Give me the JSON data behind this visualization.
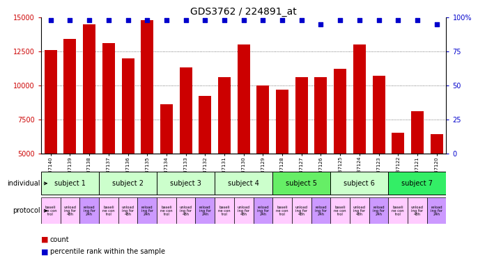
{
  "title": "GDS3762 / 224891_at",
  "samples": [
    "GSM537140",
    "GSM537139",
    "GSM537138",
    "GSM537137",
    "GSM537136",
    "GSM537135",
    "GSM537134",
    "GSM537133",
    "GSM537132",
    "GSM537131",
    "GSM537130",
    "GSM537129",
    "GSM537128",
    "GSM537127",
    "GSM537126",
    "GSM537125",
    "GSM537124",
    "GSM537123",
    "GSM537122",
    "GSM537121",
    "GSM537120"
  ],
  "bar_values": [
    12600,
    13400,
    14500,
    13100,
    12000,
    14800,
    8600,
    11300,
    9200,
    10600,
    13000,
    10000,
    9700,
    10600,
    10600,
    11200,
    13000,
    10700,
    6500,
    8100,
    6400
  ],
  "percentile_values": [
    98,
    98,
    98,
    98,
    98,
    98,
    98,
    98,
    98,
    98,
    98,
    98,
    98,
    98,
    95,
    98,
    98,
    98,
    98,
    98,
    95
  ],
  "bar_color": "#cc0000",
  "dot_color": "#0000cc",
  "ylim_left": [
    5000,
    15000
  ],
  "ylim_right": [
    0,
    100
  ],
  "yticks_left": [
    5000,
    7500,
    10000,
    12500,
    15000
  ],
  "yticks_right": [
    0,
    25,
    50,
    75,
    100
  ],
  "subjects": [
    {
      "label": "subject 1",
      "start": 0,
      "end": 3
    },
    {
      "label": "subject 2",
      "start": 3,
      "end": 6
    },
    {
      "label": "subject 3",
      "start": 6,
      "end": 9
    },
    {
      "label": "subject 4",
      "start": 9,
      "end": 12
    },
    {
      "label": "subject 5",
      "start": 12,
      "end": 15
    },
    {
      "label": "subject 6",
      "start": 15,
      "end": 18
    },
    {
      "label": "subject 7",
      "start": 18,
      "end": 21
    }
  ],
  "subject_colors": [
    "#ccffcc",
    "#ccffcc",
    "#ccffcc",
    "#ccffcc",
    "#66ee66",
    "#ccffcc",
    "#33ee66"
  ],
  "protocol_colors": [
    "#ffccff",
    "#ffccff",
    "#cc99ff"
  ],
  "background_color": "#ffffff",
  "grid_color": "#555555",
  "tick_color_left": "#cc0000",
  "tick_color_right": "#0000cc",
  "title_fontsize": 10,
  "bar_width": 0.65
}
